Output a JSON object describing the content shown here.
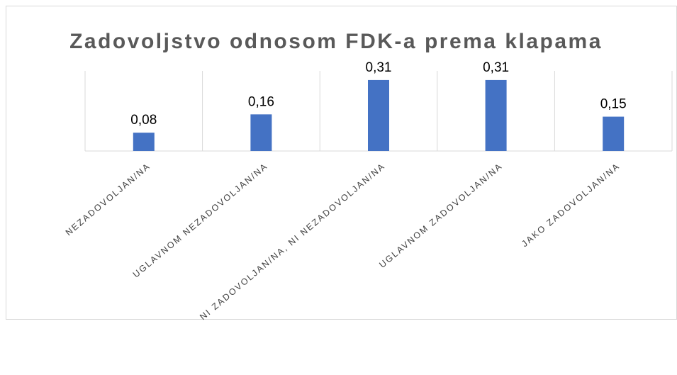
{
  "chart_data": {
    "type": "bar",
    "title": "Zadovoljstvo odnosom FDK-a prema klapama",
    "categories": [
      "NEZADOVOLJAN/NA",
      "UGLAVNOM NEZADOVOLJAN/NA",
      "NI ZADOVOLJAN/NA, NI NEZADOVOLJAN/NA",
      "UGLAVNOM ZADOVOLJAN/NA",
      "JAKO ZADOVOLJAN/NA"
    ],
    "values": [
      0.08,
      0.16,
      0.31,
      0.31,
      0.15
    ],
    "value_labels": [
      "0,08",
      "0,16",
      "0,31",
      "0,31",
      "0,15"
    ],
    "color": "#4472c4",
    "ylim": [
      0,
      0.35
    ]
  }
}
